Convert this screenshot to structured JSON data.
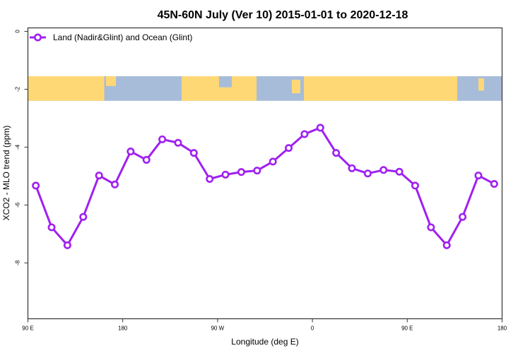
{
  "chart_data": {
    "type": "line",
    "title": "45N-60N July (Ver 10)   2015-01-01 to 2020-12-18",
    "xlabel": "Longitude (deg E)",
    "ylabel": "XCO2 - MLO trend (ppm)",
    "xlim": [
      90,
      540
    ],
    "ylim": [
      -9.93,
      0.12
    ],
    "grid": false,
    "legend_position": "top-left",
    "x_ticks": [
      {
        "value": 90,
        "label": "90 E"
      },
      {
        "value": 180,
        "label": "180"
      },
      {
        "value": 270,
        "label": "90 W"
      },
      {
        "value": 360,
        "label": "0"
      },
      {
        "value": 450,
        "label": "90 E"
      },
      {
        "value": 540,
        "label": "180"
      }
    ],
    "y_ticks": [
      {
        "value": 0,
        "label": "0"
      },
      {
        "value": -2,
        "label": "-2"
      },
      {
        "value": -4,
        "label": "-4"
      },
      {
        "value": -6,
        "label": "-6"
      },
      {
        "value": -8,
        "label": "-8"
      }
    ],
    "series": [
      {
        "name": "Land (Nadir&Glint) and Ocean (Glint)",
        "color": "#a020f0",
        "x": [
          97.5,
          112.5,
          127.5,
          142.5,
          157.5,
          172.5,
          187.5,
          202.5,
          217.5,
          232.5,
          247.5,
          262.5,
          277.5,
          292.5,
          307.5,
          322.5,
          337.5,
          352.5,
          367.5,
          382.5,
          397.5,
          412.5,
          427.5,
          442.5,
          457.5,
          472.5,
          487.5,
          502.5,
          517.5,
          532.5
        ],
        "values": [
          -5.33,
          -6.77,
          -7.39,
          -6.41,
          -4.98,
          -5.29,
          -4.15,
          -4.44,
          -3.73,
          -3.85,
          -4.2,
          -5.1,
          -4.95,
          -4.86,
          -4.81,
          -4.5,
          -4.03,
          -3.55,
          -3.33,
          -4.2,
          -4.73,
          -4.91,
          -4.79,
          -4.85,
          -5.33,
          -6.77,
          -7.39,
          -6.41,
          -4.98,
          -5.27
        ]
      }
    ],
    "map_band": {
      "land_color": "#ffd876",
      "ocean_color": "#a7bcd9",
      "y_range": [
        -1.55,
        -2.4
      ]
    }
  }
}
